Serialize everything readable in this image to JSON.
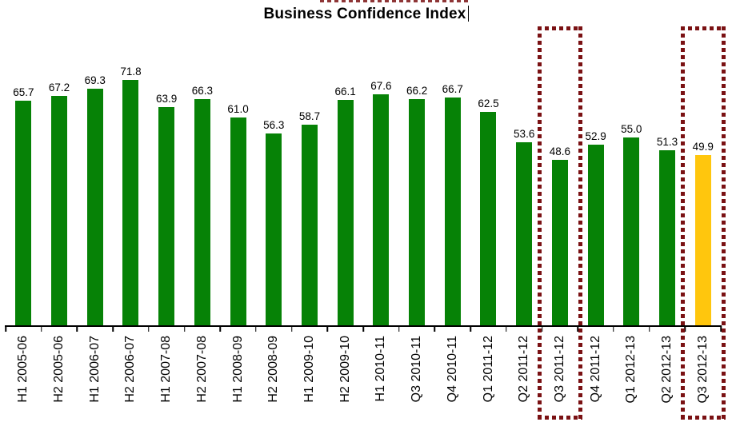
{
  "title": "Business Confidence Index",
  "chart_data": {
    "type": "bar",
    "title": "Business Confidence Index",
    "categories": [
      "H1 2005-06",
      "H2 2005-06",
      "H1 2006-07",
      "H2 2006-07",
      "H1 2007-08",
      "H2 2007-08",
      "H1 2008-09",
      "H2 2008-09",
      "H1 2009-10",
      "H2 2009-10",
      "H1 2010-11",
      "Q3 2010-11",
      "Q4 2010-11",
      "Q1 2011-12",
      "Q2 2011-12",
      "Q3 2011-12",
      "Q4 2011-12",
      "Q1 2012-13",
      "Q2 2012-13",
      "Q3 2012-13"
    ],
    "values": [
      65.7,
      67.2,
      69.3,
      71.8,
      63.9,
      66.3,
      61.0,
      56.3,
      58.7,
      66.1,
      67.6,
      66.2,
      66.7,
      62.5,
      53.6,
      48.6,
      52.9,
      55.0,
      51.3,
      49.9
    ],
    "value_labels": [
      "65.7",
      "67.2",
      "69.3",
      "71.8",
      "63.9",
      "66.3",
      "61.0",
      "56.3",
      "58.7",
      "66.1",
      "67.6",
      "66.2",
      "66.7",
      "62.5",
      "53.6",
      "48.6",
      "52.9",
      "55.0",
      "51.3",
      "49.9"
    ],
    "xlabel": "",
    "ylabel": "",
    "ylim": [
      0,
      87.5
    ],
    "grid": false,
    "legend": "none",
    "x_tick_rotation_deg": 90,
    "bar_color_default": "#068206",
    "bar_color_highlight": "#FFC60D",
    "highlighted_bar": "Q3 2012-13",
    "highlight_box_color": "#7A1113",
    "highlighted_categories": [
      "Q3 2011-12",
      "Q3 2012-13"
    ]
  }
}
